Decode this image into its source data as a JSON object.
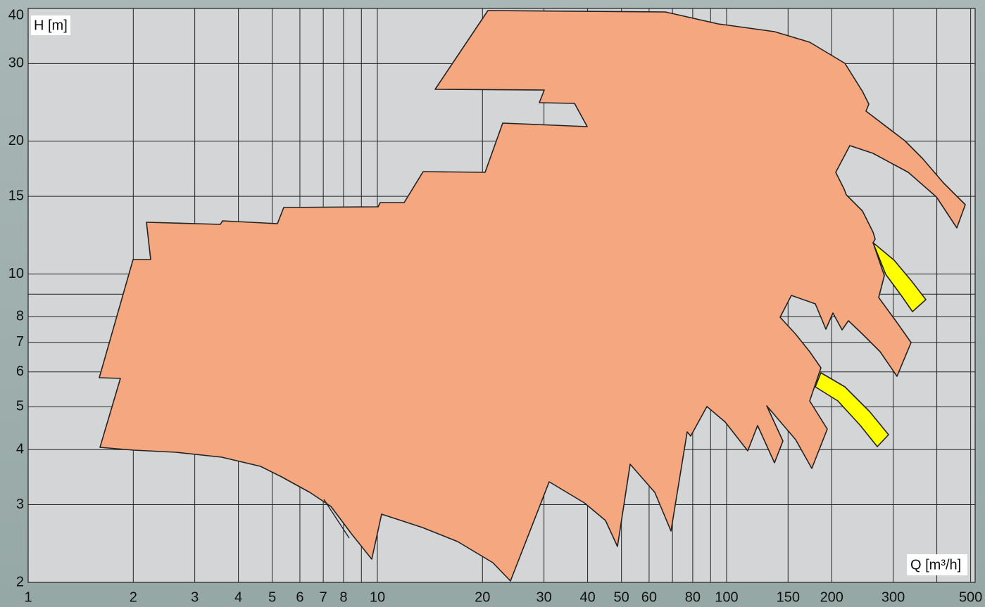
{
  "chart_data": {
    "type": "area",
    "y_label": "H [m]",
    "x_label": "Q [m³/h]",
    "x_log": true,
    "y_log": true,
    "grid": true,
    "xlim": [
      1,
      515
    ],
    "ylim": [
      2,
      40
    ],
    "xticks": [
      1,
      2,
      3,
      4,
      5,
      6,
      7,
      8,
      {
        "value": 9,
        "label": null
      },
      10,
      20,
      30,
      40,
      50,
      60,
      {
        "value": 70,
        "label": null
      },
      80,
      {
        "value": 90,
        "label": null
      },
      100,
      150,
      200,
      300,
      {
        "value": 400,
        "label": null
      },
      500
    ],
    "yticks": [
      2,
      3,
      4,
      5,
      6,
      7,
      8,
      {
        "value": 9,
        "label": null
      },
      10,
      15,
      20,
      30,
      40
    ],
    "color": "#f5a880",
    "highlight_color": "#ffff00",
    "plot_color": "#d3d5d7"
  }
}
